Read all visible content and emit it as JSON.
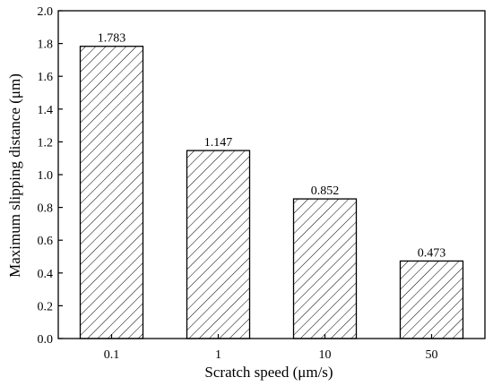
{
  "chart_data": {
    "type": "bar",
    "title": "",
    "xlabel": "Scratch speed (μm/s)",
    "ylabel": "Maximum slipping distance (μm)",
    "categories": [
      "0.1",
      "1",
      "10",
      "50"
    ],
    "values": [
      1.783,
      1.147,
      0.852,
      0.473
    ],
    "value_labels": [
      "1.783",
      "1.147",
      "0.852",
      "0.473"
    ],
    "ylim": [
      0,
      2.0
    ],
    "y_ticks": [
      "0.0",
      "0.2",
      "0.4",
      "0.6",
      "0.8",
      "1.0",
      "1.2",
      "1.4",
      "1.6",
      "1.8",
      "2.0"
    ],
    "grid": false,
    "bar_fill": "hatched",
    "colors": {
      "bar_stroke": "#000000",
      "hatch": "#000000",
      "background": "#ffffff"
    }
  }
}
